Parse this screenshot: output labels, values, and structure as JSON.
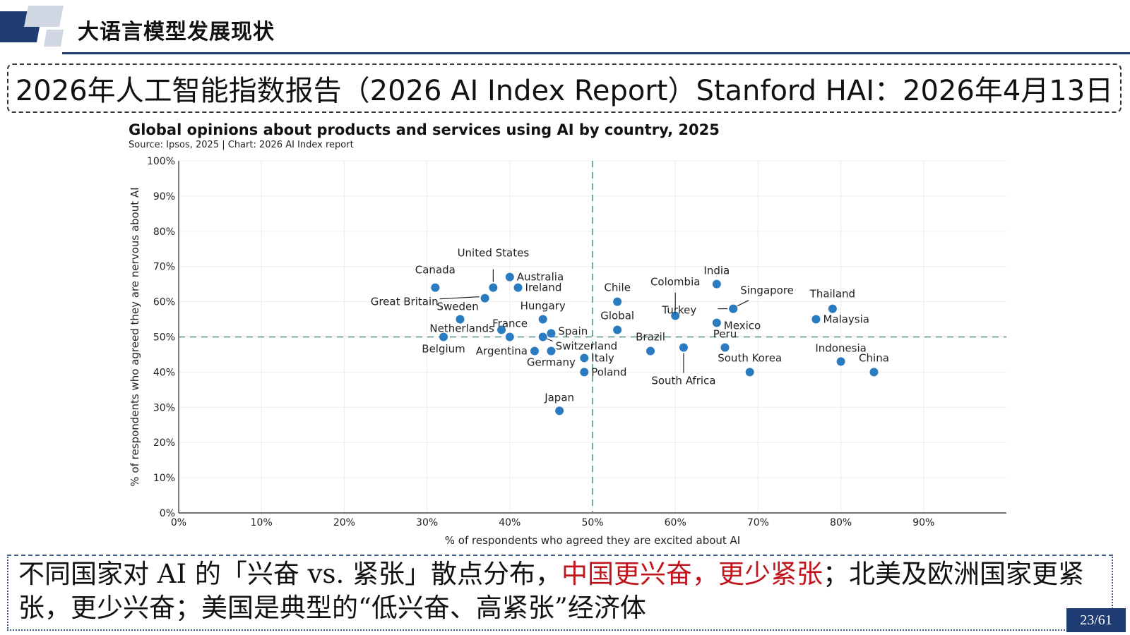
{
  "header": {
    "title": "大语言模型发展现状"
  },
  "banner": {
    "title": "2026年人工智能指数报告（2026 AI Index Report）Stanford HAI：2026年4月13日"
  },
  "chart_data": {
    "type": "scatter",
    "title": "Global opinions about products and services using AI by country, 2025",
    "subtitle": "Source: Ipsos, 2025 | Chart: 2026 AI Index report",
    "xlabel": "% of respondents who agreed they are excited about AI",
    "ylabel": "% of respondents who agreed they are nervous about AI",
    "xlim": [
      0,
      100
    ],
    "ylim": [
      0,
      100
    ],
    "x_ticks": [
      "0%",
      "10%",
      "20%",
      "30%",
      "40%",
      "50%",
      "60%",
      "70%",
      "80%",
      "90%"
    ],
    "y_ticks": [
      "0%",
      "10%",
      "20%",
      "30%",
      "40%",
      "50%",
      "60%",
      "70%",
      "80%",
      "90%",
      "100%"
    ],
    "reference_lines": {
      "x": 50,
      "y": 50
    },
    "grid": true,
    "color": "#2a7bbf",
    "points": [
      {
        "label": "Canada",
        "x": 31,
        "y": 64
      },
      {
        "label": "United States",
        "x": 38,
        "y": 64
      },
      {
        "label": "Australia",
        "x": 40,
        "y": 67
      },
      {
        "label": "Ireland",
        "x": 41,
        "y": 64
      },
      {
        "label": "Great Britain",
        "x": 37,
        "y": 61
      },
      {
        "label": "Sweden",
        "x": 34,
        "y": 55
      },
      {
        "label": "Hungary",
        "x": 44,
        "y": 55
      },
      {
        "label": "France",
        "x": 39,
        "y": 52
      },
      {
        "label": "Netherlands",
        "x": 40,
        "y": 50
      },
      {
        "label": "Belgium",
        "x": 32,
        "y": 50
      },
      {
        "label": "Spain",
        "x": 45,
        "y": 51
      },
      {
        "label": "Switzerland",
        "x": 44,
        "y": 50
      },
      {
        "label": "Argentina",
        "x": 43,
        "y": 46
      },
      {
        "label": "Germany",
        "x": 45,
        "y": 46
      },
      {
        "label": "Italy",
        "x": 49,
        "y": 44
      },
      {
        "label": "Poland",
        "x": 49,
        "y": 40
      },
      {
        "label": "Japan",
        "x": 46,
        "y": 29
      },
      {
        "label": "Chile",
        "x": 53,
        "y": 60
      },
      {
        "label": "Global",
        "x": 53,
        "y": 52
      },
      {
        "label": "Brazil",
        "x": 57,
        "y": 46
      },
      {
        "label": "Colombia",
        "x": 60,
        "y": 56
      },
      {
        "label": "South Africa",
        "x": 61,
        "y": 47
      },
      {
        "label": "India",
        "x": 65,
        "y": 65
      },
      {
        "label": "Turkey",
        "x": 67,
        "y": 58
      },
      {
        "label": "Singapore",
        "x": 67,
        "y": 58
      },
      {
        "label": "Mexico",
        "x": 65,
        "y": 54
      },
      {
        "label": "Peru",
        "x": 66,
        "y": 47
      },
      {
        "label": "South Korea",
        "x": 69,
        "y": 40
      },
      {
        "label": "Thailand",
        "x": 79,
        "y": 58
      },
      {
        "label": "Malaysia",
        "x": 77,
        "y": 55
      },
      {
        "label": "Indonesia",
        "x": 80,
        "y": 43
      },
      {
        "label": "China",
        "x": 84,
        "y": 40
      }
    ]
  },
  "note": {
    "part1": "不同国家对 AI 的「兴奋 vs. 紧张」散点分布，",
    "highlight": "中国更兴奋，更少紧张",
    "part2": "；北美及欧洲国家更紧张，更少兴奋；美国是典型的“低兴奋、高紧张”经济体"
  },
  "page": {
    "number": "23/61"
  }
}
